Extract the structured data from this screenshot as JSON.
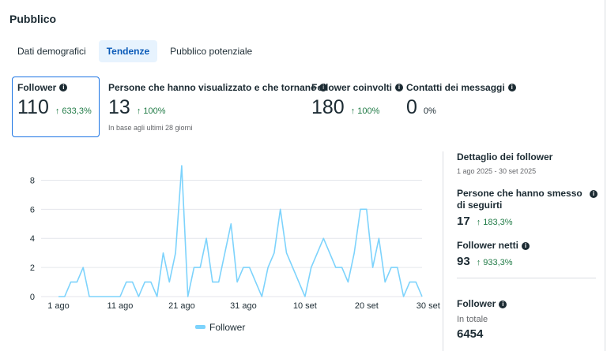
{
  "page": {
    "title": "Pubblico"
  },
  "tabs": [
    {
      "label": "Dati demografici",
      "active": false
    },
    {
      "label": "Tendenze",
      "active": true
    },
    {
      "label": "Pubblico potenziale",
      "active": false
    }
  ],
  "metrics": [
    {
      "label": "Follower",
      "value": "110",
      "change": "↑ 633,3%"
    },
    {
      "label": "Persone che hanno visualizzato e che tornano",
      "value": "13",
      "change": "↑ 100%",
      "note": "In base agli ultimi 28 giorni"
    },
    {
      "label": "Follower coinvolti",
      "value": "180",
      "change": "↑ 100%"
    },
    {
      "label": "Contatti dei messaggi",
      "value": "0",
      "change": "0%"
    }
  ],
  "chart_data": {
    "type": "line",
    "title": "",
    "xlabel": "",
    "ylabel": "",
    "ylim": [
      0,
      9
    ],
    "yticks": [
      "0",
      "2",
      "4",
      "6",
      "8"
    ],
    "xtick_labels": [
      "1 ago",
      "11 ago",
      "21 ago",
      "31 ago",
      "10 set",
      "20 set",
      "30 set"
    ],
    "legend": "bottom",
    "series": [
      {
        "name": "Follower",
        "color": "#7dd3fc",
        "values": [
          0,
          0,
          1,
          1,
          2,
          0,
          0,
          0,
          0,
          0,
          0,
          1,
          1,
          0,
          1,
          1,
          0,
          3,
          1,
          3,
          9,
          0,
          2,
          2,
          4,
          1,
          1,
          3,
          5,
          1,
          2,
          2,
          1,
          0,
          2,
          3,
          6,
          3,
          2,
          1,
          0,
          2,
          3,
          4,
          3,
          2,
          2,
          1,
          3,
          6,
          6,
          2,
          4,
          1,
          2,
          2,
          0,
          1,
          1,
          0
        ]
      }
    ]
  },
  "sidebar": {
    "title": "Dettaglio dei follower",
    "range": "1 ago 2025 - 30 set 2025",
    "stats": [
      {
        "label": "Persone che hanno smesso di seguirti",
        "value": "17",
        "change": "↑ 183,3%"
      },
      {
        "label": "Follower netti",
        "value": "93",
        "change": "↑ 933,3%"
      }
    ],
    "total": {
      "label": "Follower",
      "sublabel": "In totale",
      "value": "6454"
    }
  },
  "colors": {
    "accent": "#1b74e4",
    "positive": "#1f7a45",
    "line": "#7dd3fc"
  },
  "icons": {
    "info": "info-icon"
  }
}
